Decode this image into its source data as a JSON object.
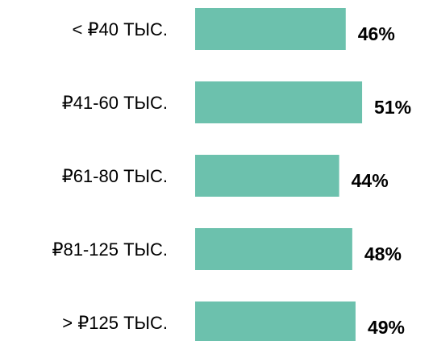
{
  "chart_data": {
    "type": "bar",
    "orientation": "horizontal",
    "categories": [
      "< ₽40 ТЫС.",
      "₽41-60 ТЫС.",
      "₽61-80 ТЫС.",
      "₽81-125 ТЫС.",
      "> ₽125 ТЫС."
    ],
    "values": [
      46,
      51,
      44,
      48,
      49
    ],
    "value_labels": [
      "46%",
      "51%",
      "44%",
      "48%",
      "49%"
    ],
    "color": "#6cc1ad"
  }
}
